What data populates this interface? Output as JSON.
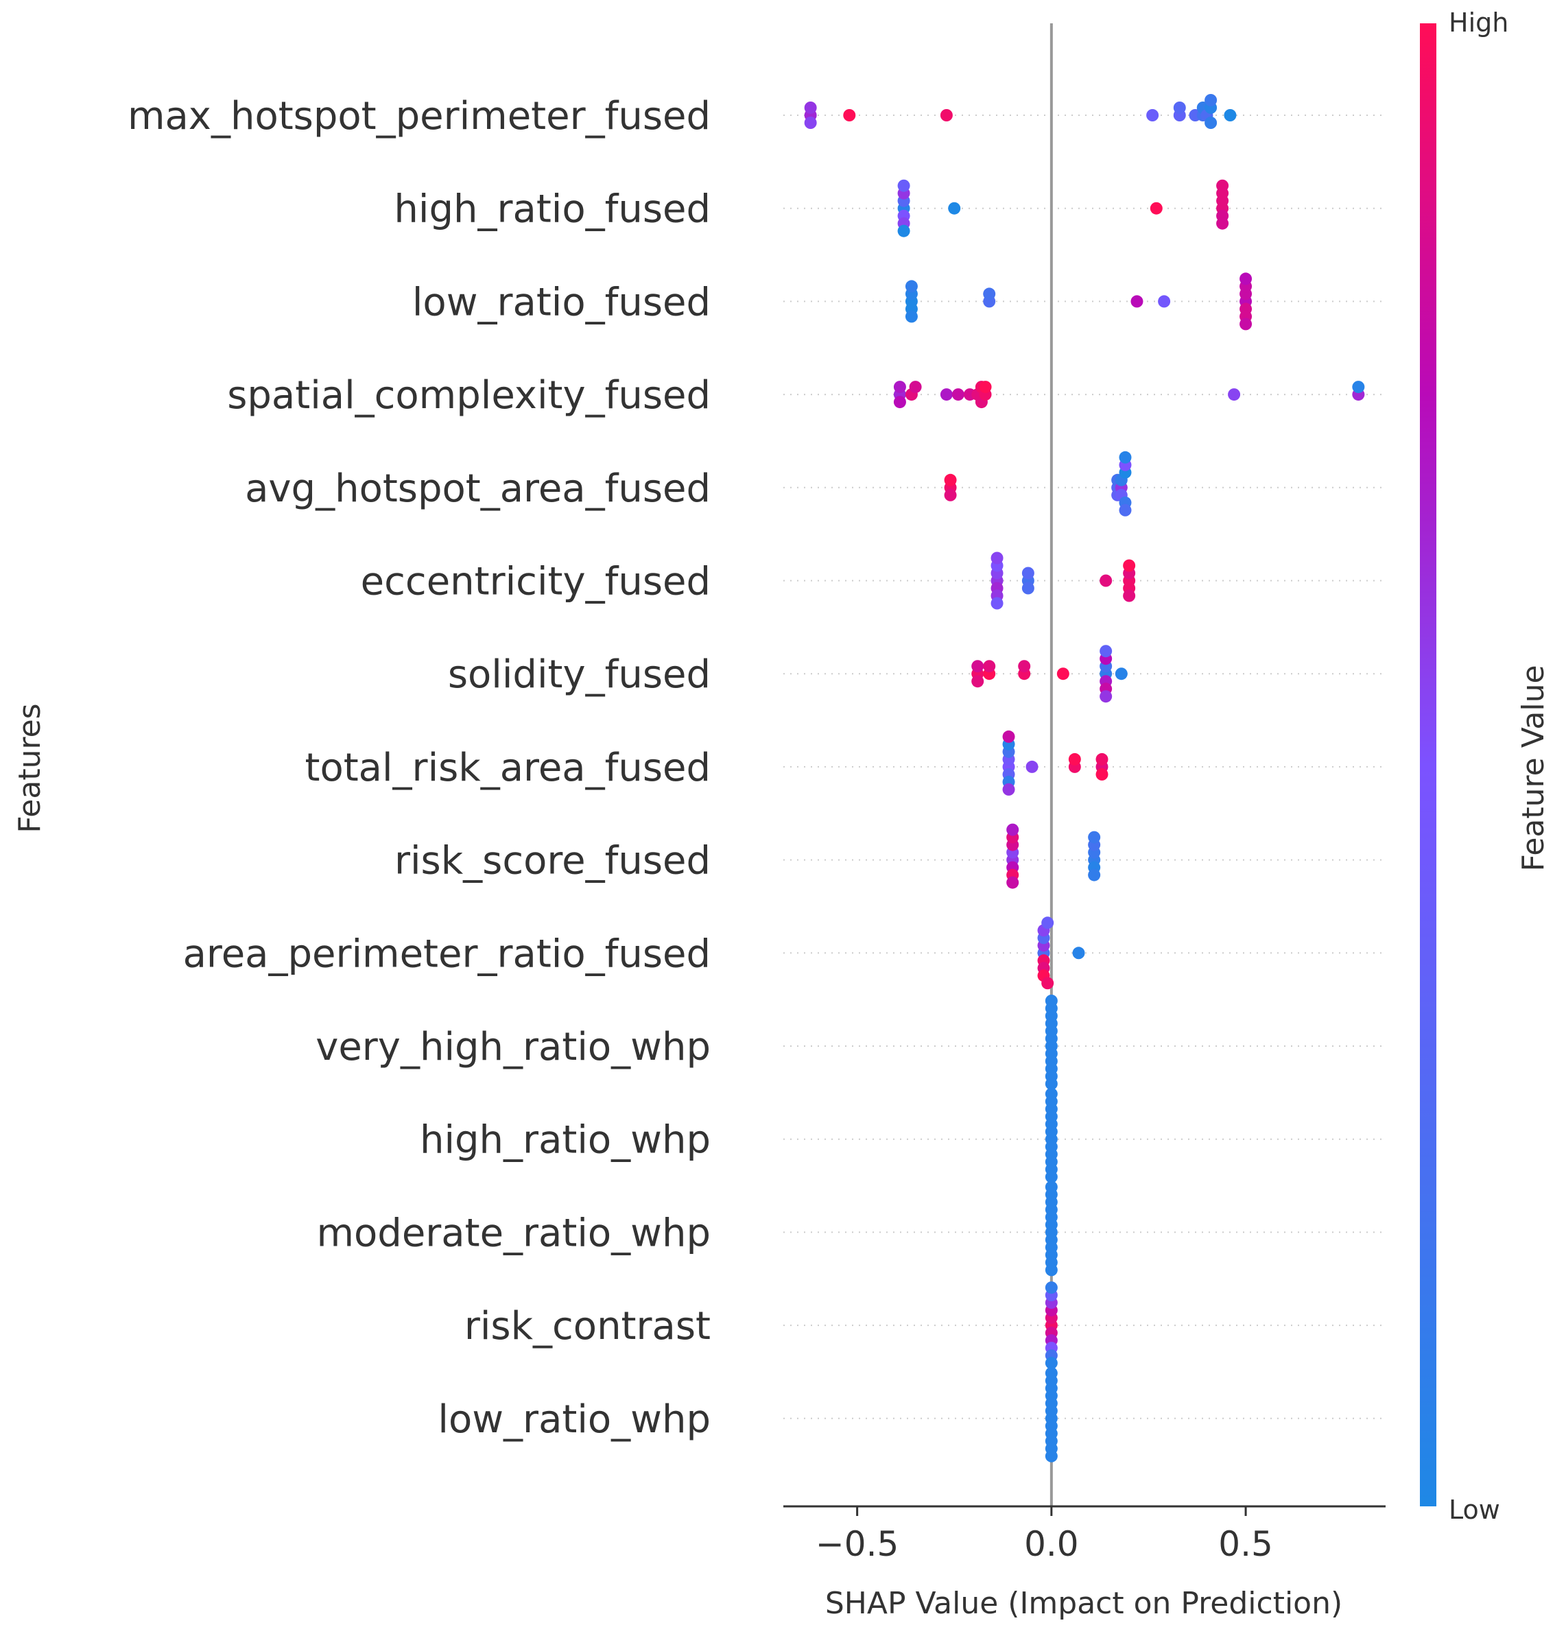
{
  "chart_data": {
    "type": "scatter",
    "subtype": "shap-beeswarm",
    "xlabel": "SHAP Value (Impact on Prediction)",
    "ylabel": "Features",
    "xlim": [
      -0.69,
      0.86
    ],
    "xticks": [
      -0.5,
      0.0,
      0.5
    ],
    "xtick_labels": [
      "−0.5",
      "0.0",
      "0.5"
    ],
    "zero_line": 0.0,
    "colorbar": {
      "title": "Feature Value",
      "high_label": "High",
      "low_label": "Low",
      "low_color": "#1e88e5",
      "high_color": "#ff0d57"
    },
    "features": [
      {
        "name": "max_hotspot_perimeter_fused",
        "points": [
          {
            "x": -0.62,
            "v": 0.65
          },
          {
            "x": -0.62,
            "v": 0.6
          },
          {
            "x": -0.62,
            "v": 0.55
          },
          {
            "x": -0.52,
            "v": 1.0
          },
          {
            "x": -0.27,
            "v": 0.95
          },
          {
            "x": 0.26,
            "v": 0.4
          },
          {
            "x": 0.33,
            "v": 0.35
          },
          {
            "x": 0.33,
            "v": 0.3
          },
          {
            "x": 0.37,
            "v": 0.3
          },
          {
            "x": 0.39,
            "v": 0.2
          },
          {
            "x": 0.39,
            "v": 0.1
          },
          {
            "x": 0.4,
            "v": 0.25
          },
          {
            "x": 0.41,
            "v": 0.05
          },
          {
            "x": 0.41,
            "v": 0.1
          },
          {
            "x": 0.41,
            "v": 0.15
          },
          {
            "x": 0.46,
            "v": 0.0
          }
        ]
      },
      {
        "name": "high_ratio_fused",
        "points": [
          {
            "x": -0.38,
            "v": 0.05
          },
          {
            "x": -0.38,
            "v": 0.3
          },
          {
            "x": -0.38,
            "v": 0.5
          },
          {
            "x": -0.38,
            "v": 0.6
          },
          {
            "x": -0.38,
            "v": 0.55
          },
          {
            "x": -0.38,
            "v": 0.4
          },
          {
            "x": -0.38,
            "v": 0.0
          },
          {
            "x": -0.25,
            "v": 0.0
          },
          {
            "x": 0.27,
            "v": 1.0
          },
          {
            "x": 0.44,
            "v": 0.9
          },
          {
            "x": 0.44,
            "v": 0.9
          },
          {
            "x": 0.44,
            "v": 0.85
          },
          {
            "x": 0.44,
            "v": 0.9
          },
          {
            "x": 0.44,
            "v": 0.85
          },
          {
            "x": 0.44,
            "v": 0.9
          }
        ]
      },
      {
        "name": "low_ratio_fused",
        "points": [
          {
            "x": -0.36,
            "v": 0.0
          },
          {
            "x": -0.36,
            "v": 0.05
          },
          {
            "x": -0.36,
            "v": 0.0
          },
          {
            "x": -0.36,
            "v": 0.1
          },
          {
            "x": -0.36,
            "v": 0.05
          },
          {
            "x": -0.16,
            "v": 0.25
          },
          {
            "x": -0.16,
            "v": 0.2
          },
          {
            "x": 0.22,
            "v": 0.75
          },
          {
            "x": 0.29,
            "v": 0.45
          },
          {
            "x": 0.5,
            "v": 0.75
          },
          {
            "x": 0.5,
            "v": 0.8
          },
          {
            "x": 0.5,
            "v": 0.85
          },
          {
            "x": 0.5,
            "v": 0.8
          },
          {
            "x": 0.5,
            "v": 0.85
          },
          {
            "x": 0.5,
            "v": 0.75
          },
          {
            "x": 0.5,
            "v": 0.8
          }
        ]
      },
      {
        "name": "spatial_complexity_fused",
        "points": [
          {
            "x": -0.39,
            "v": 0.65
          },
          {
            "x": -0.39,
            "v": 0.7
          },
          {
            "x": -0.39,
            "v": 0.75
          },
          {
            "x": -0.36,
            "v": 0.9
          },
          {
            "x": -0.35,
            "v": 0.85
          },
          {
            "x": -0.27,
            "v": 0.7
          },
          {
            "x": -0.24,
            "v": 0.8
          },
          {
            "x": -0.21,
            "v": 0.85
          },
          {
            "x": -0.19,
            "v": 0.9
          },
          {
            "x": -0.18,
            "v": 0.95
          },
          {
            "x": -0.18,
            "v": 0.9
          },
          {
            "x": -0.17,
            "v": 0.95
          },
          {
            "x": -0.17,
            "v": 1.0
          },
          {
            "x": 0.47,
            "v": 0.55
          },
          {
            "x": 0.79,
            "v": 0.65
          },
          {
            "x": 0.79,
            "v": 0.05
          }
        ]
      },
      {
        "name": "avg_hotspot_area_fused",
        "points": [
          {
            "x": -0.26,
            "v": 0.95
          },
          {
            "x": -0.26,
            "v": 1.0
          },
          {
            "x": -0.26,
            "v": 0.9
          },
          {
            "x": 0.17,
            "v": 0.3
          },
          {
            "x": 0.17,
            "v": 0.2
          },
          {
            "x": 0.17,
            "v": 0.35
          },
          {
            "x": 0.18,
            "v": 0.6
          },
          {
            "x": 0.18,
            "v": 0.1
          },
          {
            "x": 0.18,
            "v": 0.4
          },
          {
            "x": 0.19,
            "v": 0.0
          },
          {
            "x": 0.19,
            "v": 0.15
          },
          {
            "x": 0.19,
            "v": 0.5
          },
          {
            "x": 0.19,
            "v": 0.25
          },
          {
            "x": 0.19,
            "v": 0.05
          }
        ]
      },
      {
        "name": "eccentricity_fused",
        "points": [
          {
            "x": -0.14,
            "v": 0.6
          },
          {
            "x": -0.14,
            "v": 0.55
          },
          {
            "x": -0.14,
            "v": 0.65
          },
          {
            "x": -0.14,
            "v": 0.5
          },
          {
            "x": -0.14,
            "v": 0.6
          },
          {
            "x": -0.14,
            "v": 0.55
          },
          {
            "x": -0.14,
            "v": 0.45
          },
          {
            "x": -0.06,
            "v": 0.2
          },
          {
            "x": -0.06,
            "v": 0.3
          },
          {
            "x": -0.06,
            "v": 0.25
          },
          {
            "x": 0.14,
            "v": 0.9
          },
          {
            "x": 0.2,
            "v": 0.95
          },
          {
            "x": 0.2,
            "v": 0.9
          },
          {
            "x": 0.2,
            "v": 0.95
          },
          {
            "x": 0.2,
            "v": 1.0
          },
          {
            "x": 0.2,
            "v": 0.9
          }
        ]
      },
      {
        "name": "solidity_fused",
        "points": [
          {
            "x": -0.19,
            "v": 0.95
          },
          {
            "x": -0.19,
            "v": 0.85
          },
          {
            "x": -0.19,
            "v": 0.9
          },
          {
            "x": -0.16,
            "v": 1.0
          },
          {
            "x": -0.16,
            "v": 0.9
          },
          {
            "x": -0.07,
            "v": 0.95
          },
          {
            "x": -0.07,
            "v": 0.9
          },
          {
            "x": 0.03,
            "v": 1.0
          },
          {
            "x": 0.14,
            "v": 0.1
          },
          {
            "x": 0.14,
            "v": 0.2
          },
          {
            "x": 0.14,
            "v": 0.7
          },
          {
            "x": 0.14,
            "v": 0.75
          },
          {
            "x": 0.14,
            "v": 0.8
          },
          {
            "x": 0.14,
            "v": 0.35
          },
          {
            "x": 0.14,
            "v": 0.6
          },
          {
            "x": 0.18,
            "v": 0.05
          }
        ]
      },
      {
        "name": "total_risk_area_fused",
        "points": [
          {
            "x": -0.11,
            "v": 0.5
          },
          {
            "x": -0.11,
            "v": 0.45
          },
          {
            "x": -0.11,
            "v": 0.35
          },
          {
            "x": -0.11,
            "v": 0.2
          },
          {
            "x": -0.11,
            "v": 0.1
          },
          {
            "x": -0.11,
            "v": 0.05
          },
          {
            "x": -0.11,
            "v": 0.6
          },
          {
            "x": -0.11,
            "v": 0.8
          },
          {
            "x": -0.05,
            "v": 0.55
          },
          {
            "x": 0.06,
            "v": 0.95
          },
          {
            "x": 0.06,
            "v": 1.0
          },
          {
            "x": 0.13,
            "v": 0.9
          },
          {
            "x": 0.13,
            "v": 0.95
          },
          {
            "x": 0.13,
            "v": 1.0
          }
        ]
      },
      {
        "name": "risk_score_fused",
        "points": [
          {
            "x": -0.1,
            "v": 0.6
          },
          {
            "x": -0.1,
            "v": 0.55
          },
          {
            "x": -0.1,
            "v": 0.75
          },
          {
            "x": -0.1,
            "v": 0.85
          },
          {
            "x": -0.1,
            "v": 0.95
          },
          {
            "x": -0.1,
            "v": 0.9
          },
          {
            "x": -0.1,
            "v": 0.8
          },
          {
            "x": -0.1,
            "v": 0.7
          },
          {
            "x": 0.11,
            "v": 0.1
          },
          {
            "x": 0.11,
            "v": 0.15
          },
          {
            "x": 0.11,
            "v": 0.05
          },
          {
            "x": 0.11,
            "v": 0.2
          },
          {
            "x": 0.11,
            "v": 0.1
          },
          {
            "x": 0.11,
            "v": 0.15
          }
        ]
      },
      {
        "name": "area_perimeter_ratio_fused",
        "points": [
          {
            "x": -0.02,
            "v": 0.25
          },
          {
            "x": -0.02,
            "v": 0.6
          },
          {
            "x": -0.02,
            "v": 0.95
          },
          {
            "x": -0.02,
            "v": 0.3
          },
          {
            "x": -0.02,
            "v": 0.9
          },
          {
            "x": -0.02,
            "v": 0.55
          },
          {
            "x": -0.02,
            "v": 1.0
          },
          {
            "x": -0.01,
            "v": 0.4
          },
          {
            "x": -0.01,
            "v": 0.95
          },
          {
            "x": 0.07,
            "v": 0.05
          }
        ]
      },
      {
        "name": "very_high_ratio_whp",
        "points": [
          {
            "x": 0.0,
            "v": 0.05
          },
          {
            "x": 0.0,
            "v": 0.05
          },
          {
            "x": 0.0,
            "v": 0.05
          },
          {
            "x": 0.0,
            "v": 0.05
          },
          {
            "x": 0.0,
            "v": 0.05
          },
          {
            "x": 0.0,
            "v": 0.05
          },
          {
            "x": 0.0,
            "v": 0.05
          },
          {
            "x": 0.0,
            "v": 0.05
          },
          {
            "x": 0.0,
            "v": 0.05
          },
          {
            "x": 0.0,
            "v": 0.05
          },
          {
            "x": 0.0,
            "v": 0.05
          },
          {
            "x": 0.0,
            "v": 0.05
          }
        ]
      },
      {
        "name": "high_ratio_whp",
        "points": [
          {
            "x": 0.0,
            "v": 0.05
          },
          {
            "x": 0.0,
            "v": 0.05
          },
          {
            "x": 0.0,
            "v": 0.05
          },
          {
            "x": 0.0,
            "v": 0.05
          },
          {
            "x": 0.0,
            "v": 0.05
          },
          {
            "x": 0.0,
            "v": 0.05
          },
          {
            "x": 0.0,
            "v": 0.05
          },
          {
            "x": 0.0,
            "v": 0.05
          },
          {
            "x": 0.0,
            "v": 0.05
          },
          {
            "x": 0.0,
            "v": 0.05
          },
          {
            "x": 0.0,
            "v": 0.05
          },
          {
            "x": 0.0,
            "v": 0.05
          }
        ]
      },
      {
        "name": "moderate_ratio_whp",
        "points": [
          {
            "x": 0.0,
            "v": 0.05
          },
          {
            "x": 0.0,
            "v": 0.05
          },
          {
            "x": 0.0,
            "v": 0.05
          },
          {
            "x": 0.0,
            "v": 0.05
          },
          {
            "x": 0.0,
            "v": 0.05
          },
          {
            "x": 0.0,
            "v": 0.05
          },
          {
            "x": 0.0,
            "v": 0.05
          },
          {
            "x": 0.0,
            "v": 0.05
          },
          {
            "x": 0.0,
            "v": 0.05
          },
          {
            "x": 0.0,
            "v": 0.05
          },
          {
            "x": 0.0,
            "v": 0.05
          },
          {
            "x": 0.0,
            "v": 0.05
          }
        ]
      },
      {
        "name": "risk_contrast",
        "points": [
          {
            "x": 0.0,
            "v": 0.95
          },
          {
            "x": 0.0,
            "v": 0.9
          },
          {
            "x": 0.0,
            "v": 0.85
          },
          {
            "x": 0.0,
            "v": 0.8
          },
          {
            "x": 0.0,
            "v": 0.7
          },
          {
            "x": 0.0,
            "v": 0.6
          },
          {
            "x": 0.0,
            "v": 0.5
          },
          {
            "x": 0.0,
            "v": 0.4
          },
          {
            "x": 0.0,
            "v": 0.2
          },
          {
            "x": 0.0,
            "v": 0.1
          },
          {
            "x": 0.0,
            "v": 0.05
          }
        ]
      },
      {
        "name": "low_ratio_whp",
        "points": [
          {
            "x": 0.0,
            "v": 0.05
          },
          {
            "x": 0.0,
            "v": 0.05
          },
          {
            "x": 0.0,
            "v": 0.05
          },
          {
            "x": 0.0,
            "v": 0.05
          },
          {
            "x": 0.0,
            "v": 0.05
          },
          {
            "x": 0.0,
            "v": 0.05
          },
          {
            "x": 0.0,
            "v": 0.05
          },
          {
            "x": 0.0,
            "v": 0.05
          },
          {
            "x": 0.0,
            "v": 0.05
          },
          {
            "x": 0.0,
            "v": 0.05
          },
          {
            "x": 0.0,
            "v": 0.05
          },
          {
            "x": 0.0,
            "v": 0.05
          }
        ]
      }
    ]
  }
}
